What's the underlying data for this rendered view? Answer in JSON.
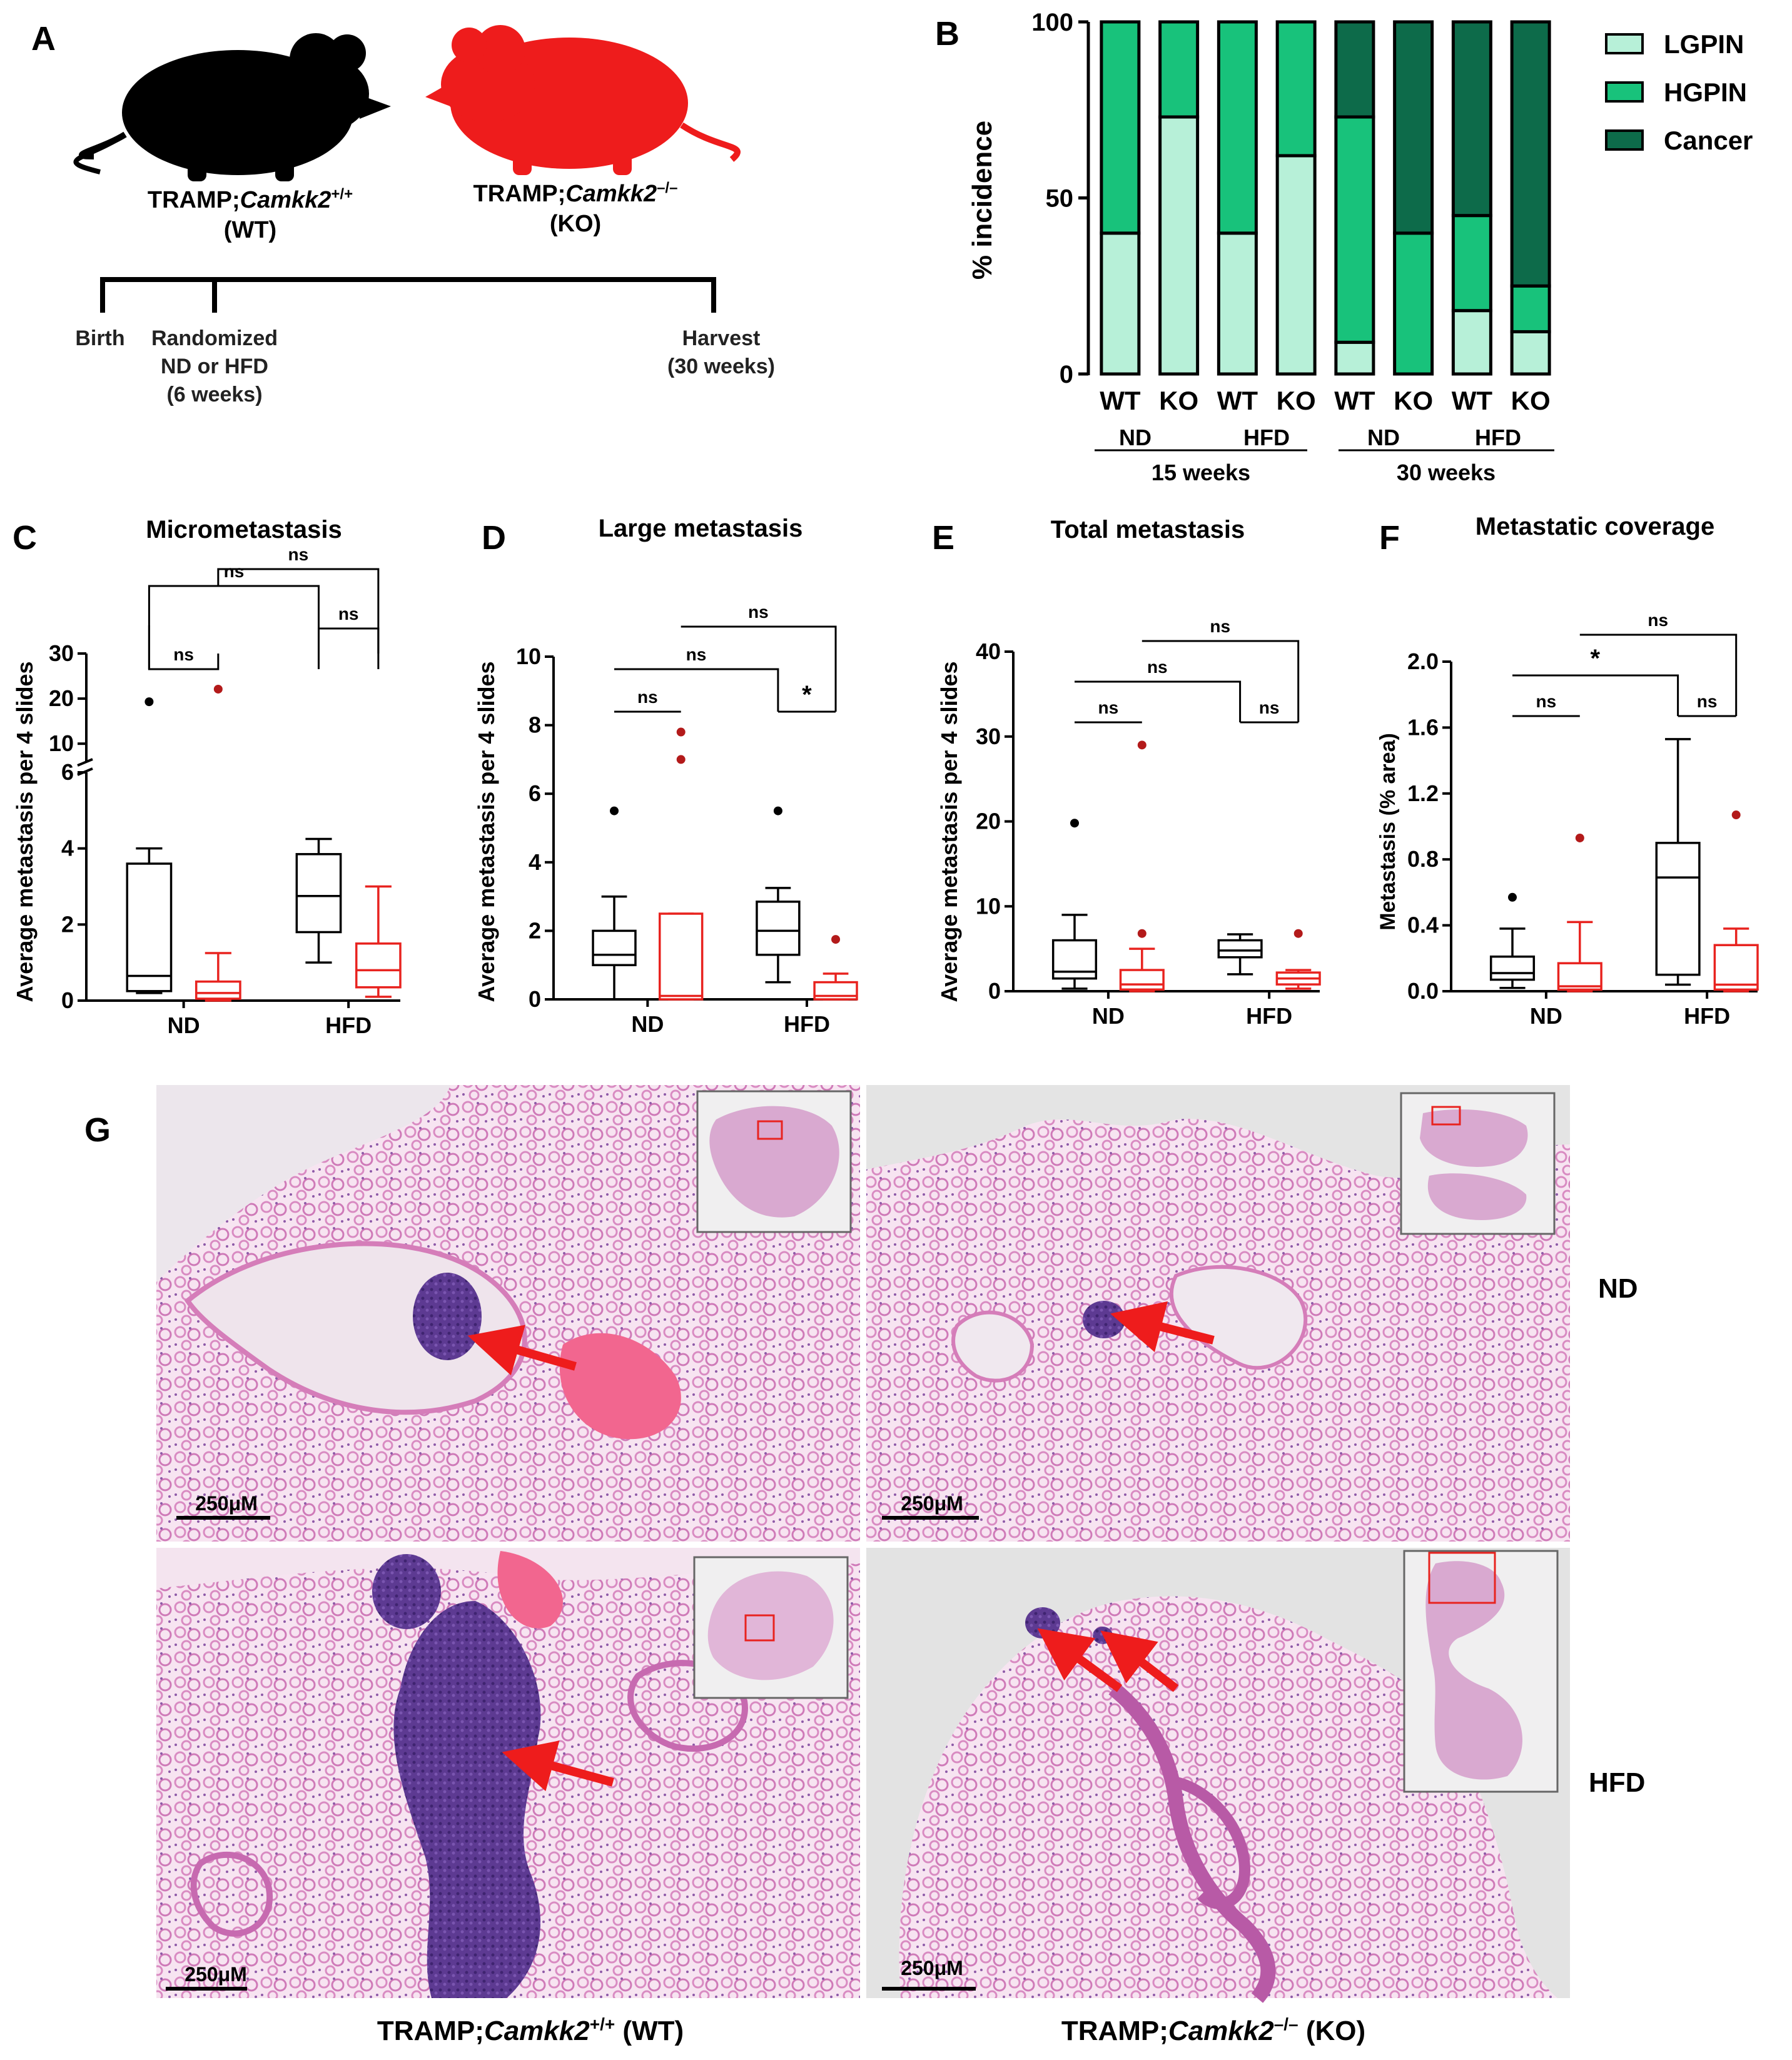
{
  "colors": {
    "wt": "#000000",
    "ko": "#e8231f",
    "lgpin": "#b7f0d8",
    "hgpin": "#18c27b",
    "cancer": "#0d6b4a",
    "tissue_bg": "#f2d6e9",
    "tissue_dark": "#d77fbd",
    "tumor": "#6b3fa0",
    "arrow": "#ee1c1c",
    "inset_box": "#e8231f"
  },
  "panel_a": {
    "label": "A",
    "wt_prefix": "TRAMP;",
    "wt_gene": "Camkk2",
    "wt_sup": "+/+",
    "wt_short": "(WT)",
    "ko_prefix": "TRAMP;",
    "ko_gene": "Camkk2",
    "ko_sup": "–/–",
    "ko_short": "(KO)",
    "birth": "Birth",
    "rand_1": "Randomized",
    "rand_2": "ND or HFD",
    "rand_3": "(6 weeks)",
    "harvest_1": "Harvest",
    "harvest_2": "(30 weeks)"
  },
  "panel_b": {
    "label": "B",
    "ylabel": "% incidence",
    "group_labels": [
      "ND",
      "HFD",
      "ND",
      "HFD"
    ],
    "time_labels": [
      "15 weeks",
      "30 weeks"
    ]
  },
  "panel_c": {
    "label": "C",
    "title": "Micrometastasis",
    "ylabel": "Average metastasis per 4 slides",
    "sig": [
      "ns",
      "ns",
      "ns",
      "ns"
    ]
  },
  "panel_d": {
    "label": "D",
    "title": "Large metastasis",
    "ylabel": "Average metastasis per 4 slides",
    "sig": [
      "ns",
      "ns",
      "ns",
      "*"
    ]
  },
  "panel_e": {
    "label": "E",
    "title": "Total metastasis",
    "ylabel": "Average metastasis per 4 slides",
    "sig": [
      "ns",
      "ns",
      "ns",
      "ns"
    ]
  },
  "panel_f": {
    "label": "F",
    "title": "Metastatic coverage",
    "ylabel": "Metastasis (% area)",
    "sig": [
      "ns",
      "*",
      "ns",
      "ns"
    ]
  },
  "panel_g": {
    "label": "G",
    "row_labels": [
      "ND",
      "HFD"
    ],
    "scale_bar": "250μM",
    "wt_prefix": "TRAMP;",
    "wt_gene": "Camkk2",
    "wt_sup": "+/+",
    "wt_suffix": " (WT)",
    "ko_prefix": "TRAMP;",
    "ko_gene": "Camkk2",
    "ko_sup": "–/–",
    "ko_suffix": " (KO)"
  },
  "chart_data": [
    {
      "panel": "B",
      "type": "bar",
      "stacked": true,
      "ylabel": "% incidence",
      "ylim": [
        0,
        100
      ],
      "yticks": [
        0,
        50,
        100
      ],
      "categories": [
        "WT",
        "KO",
        "WT",
        "KO",
        "WT",
        "KO",
        "WT",
        "KO"
      ],
      "series": [
        {
          "name": "LGPIN",
          "values": [
            40,
            73,
            40,
            62,
            9,
            0,
            18,
            12
          ]
        },
        {
          "name": "HGPIN",
          "values": [
            60,
            27,
            60,
            38,
            64,
            40,
            27,
            13
          ]
        },
        {
          "name": "Cancer",
          "values": [
            0,
            0,
            0,
            0,
            27,
            60,
            55,
            75
          ]
        }
      ],
      "legend": "top-right"
    },
    {
      "panel": "C",
      "type": "box",
      "title": "Micrometastasis",
      "ylabel": "Average metastasis per 4 slides",
      "categories": [
        "ND",
        "HFD"
      ],
      "axis_lower": {
        "range": [
          0,
          6
        ],
        "ticks": [
          0,
          2,
          4,
          6
        ]
      },
      "axis_upper": {
        "range": [
          6,
          30
        ],
        "ticks": [
          10,
          20,
          30
        ]
      },
      "boxes": [
        {
          "x": "ND",
          "genotype": "WT",
          "min": 0.2,
          "q1": 0.25,
          "median": 0.65,
          "q3": 3.6,
          "max": 4.0,
          "outliers": [
            19.3
          ]
        },
        {
          "x": "ND",
          "genotype": "KO",
          "min": 0,
          "q1": 0.05,
          "median": 0.2,
          "q3": 0.5,
          "max": 1.25,
          "outliers": [
            22.1
          ]
        },
        {
          "x": "HFD",
          "genotype": "WT",
          "min": 1.0,
          "q1": 1.8,
          "median": 2.75,
          "q3": 3.85,
          "max": 4.25,
          "outliers": []
        },
        {
          "x": "HFD",
          "genotype": "KO",
          "min": 0.1,
          "q1": 0.35,
          "median": 0.8,
          "q3": 1.5,
          "max": 3.0,
          "outliers": []
        }
      ]
    },
    {
      "panel": "D",
      "type": "box",
      "title": "Large metastasis",
      "ylabel": "Average metastasis per 4 slides",
      "categories": [
        "ND",
        "HFD"
      ],
      "ylim": [
        0,
        10
      ],
      "yticks": [
        0,
        2,
        4,
        6,
        8,
        10
      ],
      "boxes": [
        {
          "x": "ND",
          "genotype": "WT",
          "min": 0,
          "q1": 1.0,
          "median": 1.3,
          "q3": 2.0,
          "max": 3.0,
          "outliers": [
            5.5
          ]
        },
        {
          "x": "ND",
          "genotype": "KO",
          "min": 0,
          "q1": 0,
          "median": 0.1,
          "q3": 2.5,
          "max": 2.5,
          "outliers": [
            7.0,
            7.8
          ]
        },
        {
          "x": "HFD",
          "genotype": "WT",
          "min": 0.5,
          "q1": 1.3,
          "median": 2.0,
          "q3": 2.85,
          "max": 3.25,
          "outliers": [
            5.5
          ]
        },
        {
          "x": "HFD",
          "genotype": "KO",
          "min": 0,
          "q1": 0,
          "median": 0.1,
          "q3": 0.5,
          "max": 0.75,
          "outliers": [
            1.75
          ]
        }
      ]
    },
    {
      "panel": "E",
      "type": "box",
      "title": "Total metastasis",
      "ylabel": "Average metastasis per 4 slides",
      "categories": [
        "ND",
        "HFD"
      ],
      "ylim": [
        0,
        40
      ],
      "yticks": [
        0,
        10,
        20,
        30,
        40
      ],
      "boxes": [
        {
          "x": "ND",
          "genotype": "WT",
          "min": 0.3,
          "q1": 1.5,
          "median": 2.3,
          "q3": 6.0,
          "max": 9.0,
          "outliers": [
            19.8
          ]
        },
        {
          "x": "ND",
          "genotype": "KO",
          "min": 0,
          "q1": 0.2,
          "median": 0.8,
          "q3": 2.5,
          "max": 5.0,
          "outliers": [
            6.8,
            29.0
          ]
        },
        {
          "x": "HFD",
          "genotype": "WT",
          "min": 2.0,
          "q1": 4.0,
          "median": 4.8,
          "q3": 6.0,
          "max": 6.7,
          "outliers": []
        },
        {
          "x": "HFD",
          "genotype": "KO",
          "min": 0.3,
          "q1": 0.8,
          "median": 1.5,
          "q3": 2.2,
          "max": 2.5,
          "outliers": [
            6.8
          ]
        }
      ]
    },
    {
      "panel": "F",
      "type": "box",
      "title": "Metastatic coverage",
      "ylabel": "Metastasis (% area)",
      "categories": [
        "ND",
        "HFD"
      ],
      "ylim": [
        0,
        2.0
      ],
      "yticks": [
        0.0,
        0.4,
        0.8,
        1.2,
        1.6,
        2.0
      ],
      "boxes": [
        {
          "x": "ND",
          "genotype": "WT",
          "min": 0.02,
          "q1": 0.07,
          "median": 0.11,
          "q3": 0.21,
          "max": 0.38,
          "outliers": [
            0.57
          ]
        },
        {
          "x": "ND",
          "genotype": "KO",
          "min": 0,
          "q1": 0.01,
          "median": 0.03,
          "q3": 0.17,
          "max": 0.42,
          "outliers": [
            0.93
          ]
        },
        {
          "x": "HFD",
          "genotype": "WT",
          "min": 0.04,
          "q1": 0.1,
          "median": 0.69,
          "q3": 0.9,
          "max": 1.53,
          "outliers": []
        },
        {
          "x": "HFD",
          "genotype": "KO",
          "min": 0,
          "q1": 0.01,
          "median": 0.04,
          "q3": 0.28,
          "max": 0.38,
          "outliers": [
            1.07
          ]
        }
      ]
    }
  ]
}
